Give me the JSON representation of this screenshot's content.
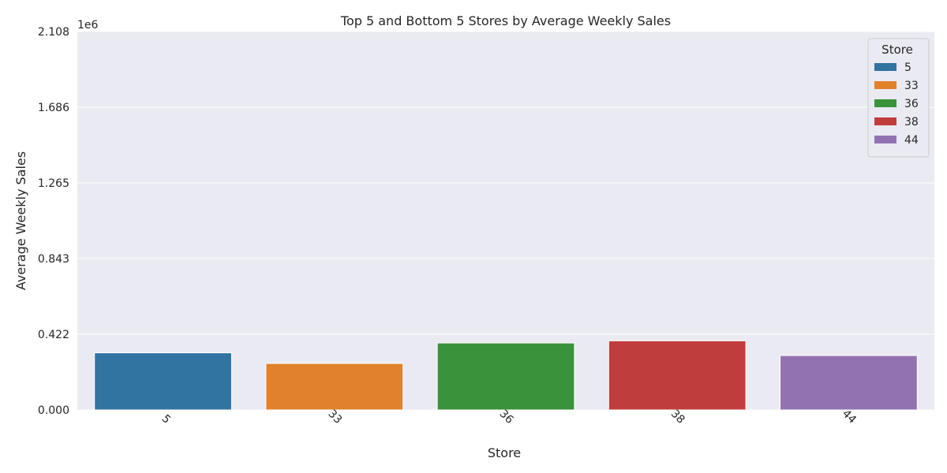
{
  "chart_data": {
    "type": "bar",
    "title": "Top 5 and Bottom 5 Stores by Average Weekly Sales",
    "xlabel": "Store",
    "ylabel": "Average Weekly Sales",
    "y_offset_label": "1e6",
    "categories": [
      "5",
      "33",
      "36",
      "38",
      "44"
    ],
    "values": [
      318000,
      259000,
      373000,
      385000,
      303000
    ],
    "colors": [
      "#3274a1",
      "#e1812c",
      "#3a923a",
      "#c03d3e",
      "#9372b2"
    ],
    "ylim": [
      0,
      2108000
    ],
    "y_ticks": [
      "0.000",
      "0.422",
      "0.843",
      "1.265",
      "1.686",
      "2.108"
    ],
    "y_tick_values": [
      0,
      422000,
      843000,
      1265000,
      1686000,
      2108000
    ],
    "legend": {
      "title": "Store",
      "placement": "top-right",
      "entries": [
        "5",
        "33",
        "36",
        "38",
        "44"
      ]
    },
    "grid": true
  }
}
